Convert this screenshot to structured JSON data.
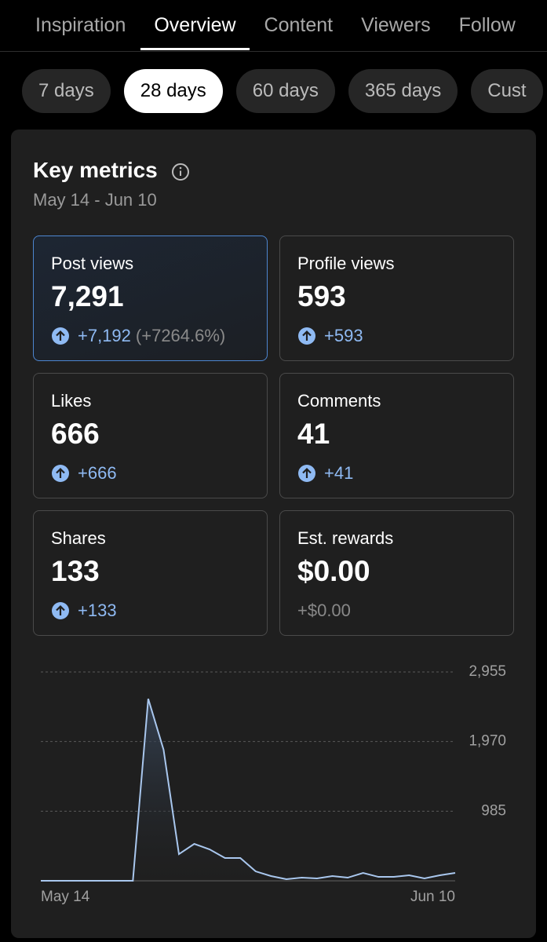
{
  "tabs": {
    "items": [
      "Inspiration",
      "Overview",
      "Content",
      "Viewers",
      "Follow"
    ],
    "selected": 1
  },
  "ranges": {
    "items": [
      "7 days",
      "28 days",
      "60 days",
      "365 days",
      "Cust"
    ],
    "selected": 1
  },
  "card": {
    "title": "Key metrics",
    "date_range": "May 14 - Jun 10",
    "metrics": [
      {
        "label": "Post views",
        "value": "7,291",
        "change": "+7,192",
        "change_pct": "(+7264.6%)",
        "trend": "up",
        "highlighted": true
      },
      {
        "label": "Profile views",
        "value": "593",
        "change": "+593",
        "trend": "up"
      },
      {
        "label": "Likes",
        "value": "666",
        "change": "+666",
        "trend": "up"
      },
      {
        "label": "Comments",
        "value": "41",
        "change": "+41",
        "trend": "up"
      },
      {
        "label": "Shares",
        "value": "133",
        "change": "+133",
        "trend": "up"
      },
      {
        "label": "Est. rewards",
        "value": "$0.00",
        "change": "+$0.00"
      }
    ]
  },
  "chart_data": {
    "type": "line",
    "categories": [
      "May 14",
      null,
      null,
      null,
      null,
      null,
      null,
      null,
      null,
      null,
      null,
      null,
      null,
      null,
      null,
      null,
      null,
      null,
      null,
      null,
      null,
      null,
      null,
      null,
      null,
      null,
      null,
      "Jun 10"
    ],
    "values": [
      0,
      0,
      0,
      0,
      0,
      0,
      0,
      2575,
      1854,
      377,
      522,
      444,
      322,
      322,
      133,
      67,
      22,
      44,
      33,
      67,
      44,
      111,
      55,
      55,
      78,
      33,
      78,
      111
    ],
    "color": "#a9c7ee",
    "ylim": [
      0,
      2955
    ],
    "yticks": [
      985,
      {
        "value": 1970,
        "label": "1,970"
      },
      {
        "value": 2955,
        "label": "2,955"
      }
    ],
    "grid": true
  }
}
